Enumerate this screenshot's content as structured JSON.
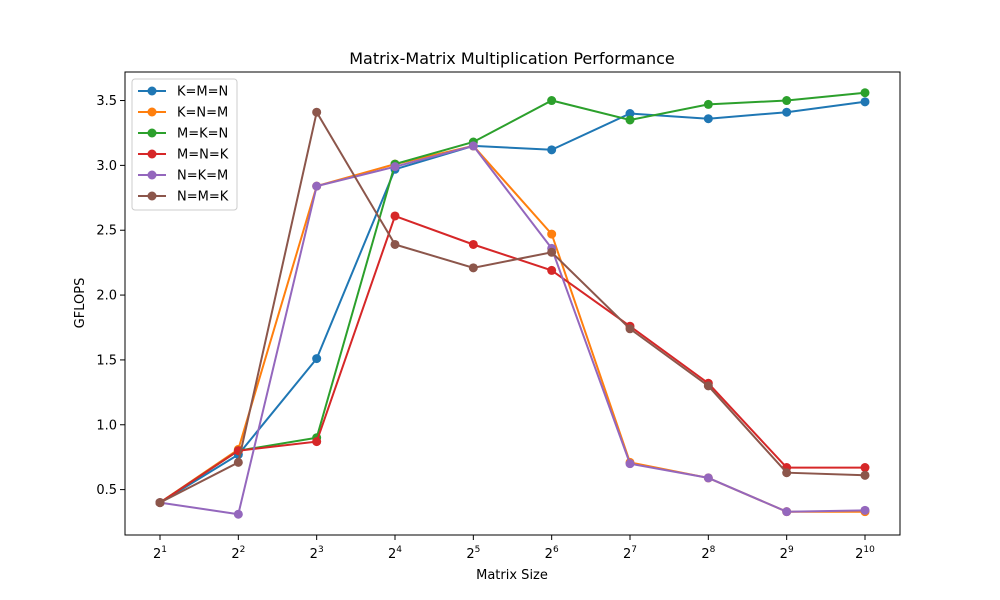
{
  "chart_data": {
    "type": "line",
    "title": "Matrix-Matrix Multiplication Performance",
    "xlabel": "Matrix Size",
    "ylabel": "GFLOPS",
    "x_exponents": [
      1,
      2,
      3,
      4,
      5,
      6,
      7,
      8,
      9,
      10
    ],
    "x_tick_base": "2",
    "x_scale": "log2",
    "ylim": [
      0.15,
      3.72
    ],
    "y_ticks": [
      0.5,
      1.0,
      1.5,
      2.0,
      2.5,
      3.0,
      3.5
    ],
    "y_tick_labels": [
      "0.5",
      "1.0",
      "1.5",
      "2.0",
      "2.5",
      "3.0",
      "3.5"
    ],
    "grid": false,
    "legend_position": "top-left",
    "series": [
      {
        "name": "K=M=N",
        "color": "#1f77b4",
        "values": [
          0.4,
          0.77,
          1.51,
          2.97,
          3.15,
          3.12,
          3.4,
          3.36,
          3.41,
          3.49
        ]
      },
      {
        "name": "K=N=M",
        "color": "#ff7f0e",
        "values": [
          0.4,
          0.81,
          2.84,
          3.01,
          3.15,
          2.47,
          0.71,
          0.59,
          0.33,
          0.33
        ]
      },
      {
        "name": "M=K=N",
        "color": "#2ca02c",
        "values": [
          0.4,
          0.8,
          0.9,
          3.01,
          3.18,
          3.5,
          3.35,
          3.47,
          3.5,
          3.56
        ]
      },
      {
        "name": "M=N=K",
        "color": "#d62728",
        "values": [
          0.4,
          0.8,
          0.87,
          2.61,
          2.39,
          2.19,
          1.76,
          1.32,
          0.67,
          0.67
        ]
      },
      {
        "name": "N=K=M",
        "color": "#9467bd",
        "values": [
          0.4,
          0.31,
          2.84,
          2.99,
          3.15,
          2.36,
          0.7,
          0.59,
          0.33,
          0.34
        ]
      },
      {
        "name": "N=M=K",
        "color": "#8c564b",
        "values": [
          0.4,
          0.71,
          3.41,
          2.39,
          2.21,
          2.33,
          1.74,
          1.3,
          0.63,
          0.61
        ]
      }
    ]
  }
}
